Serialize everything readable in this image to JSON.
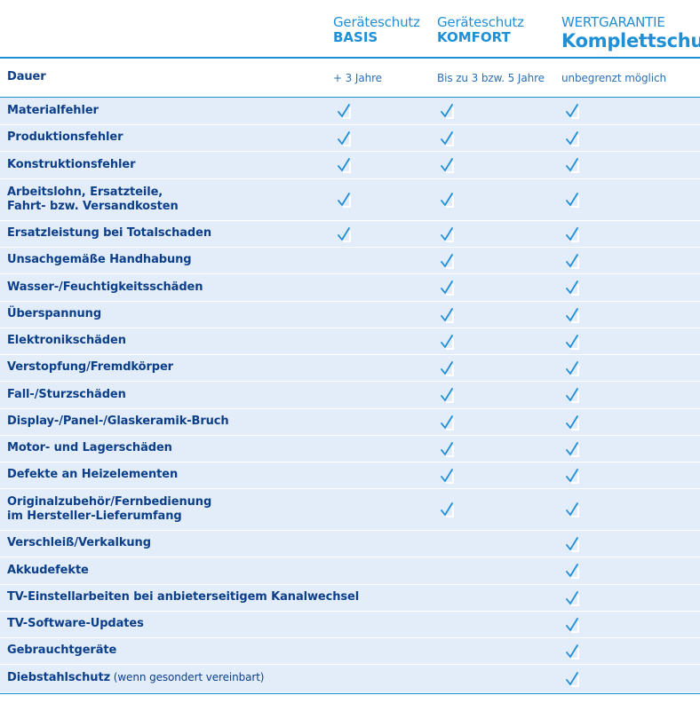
{
  "headers": [
    {
      "line1": "Geräteschutz",
      "line2": "BASIS"
    },
    {
      "line1": "Geräteschutz",
      "line2": "KOMFORT"
    },
    {
      "line1": "WERTGARANTIE",
      "line2": "Komplettschutz"
    }
  ],
  "duration": {
    "label": "Dauer",
    "values": [
      "+ 3 Jahre",
      "Bis zu 3 bzw. 5 Jahre",
      "unbegrenzt möglich"
    ]
  },
  "rows": [
    {
      "label": "Materialfehler",
      "basis": true,
      "komfort": true,
      "komplett": true
    },
    {
      "label": "Produktionsfehler",
      "basis": true,
      "komfort": true,
      "komplett": true
    },
    {
      "label": "Konstruktionsfehler",
      "basis": true,
      "komfort": true,
      "komplett": true
    },
    {
      "label": "Arbeitslohn, Ersatzteile,",
      "label2": "Fahrt- bzw. Versandkosten",
      "basis": true,
      "komfort": true,
      "komplett": true
    },
    {
      "label": "Ersatzleistung bei Totalschaden",
      "basis": true,
      "komfort": true,
      "komplett": true
    },
    {
      "label": "Unsachgemäße Handhabung",
      "basis": false,
      "komfort": true,
      "komplett": true
    },
    {
      "label": "Wasser-/Feuchtigkeitsschäden",
      "basis": false,
      "komfort": true,
      "komplett": true
    },
    {
      "label": "Überspannung",
      "basis": false,
      "komfort": true,
      "komplett": true
    },
    {
      "label": "Elektronikschäden",
      "basis": false,
      "komfort": true,
      "komplett": true
    },
    {
      "label": "Verstopfung/Fremdkörper",
      "basis": false,
      "komfort": true,
      "komplett": true
    },
    {
      "label": "Fall-/Sturzschäden",
      "basis": false,
      "komfort": true,
      "komplett": true
    },
    {
      "label": "Display-/Panel-/Glaskeramik-Bruch",
      "basis": false,
      "komfort": true,
      "komplett": true
    },
    {
      "label": "Motor- und Lagerschäden",
      "basis": false,
      "komfort": true,
      "komplett": true
    },
    {
      "label": "Defekte an Heizelementen",
      "basis": false,
      "komfort": true,
      "komplett": true
    },
    {
      "label": "Originalzubehör/Fernbedienung",
      "label2": "im Hersteller-Lieferumfang",
      "basis": false,
      "komfort": true,
      "komplett": true
    },
    {
      "label": "Verschleiß/Verkalkung",
      "basis": false,
      "komfort": false,
      "komplett": true
    },
    {
      "label": "Akkudefekte",
      "basis": false,
      "komfort": false,
      "komplett": true
    },
    {
      "label": "TV-Einstellarbeiten bei anbieterseitigem Kanalwechsel",
      "basis": false,
      "komfort": false,
      "komplett": true
    },
    {
      "label": "TV-Software-Updates",
      "basis": false,
      "komfort": false,
      "komplett": true
    },
    {
      "label": "Gebrauchtgeräte",
      "basis": false,
      "komfort": false,
      "komplett": true
    },
    {
      "label": "Diebstahlschutz",
      "note": "(wenn gesondert vereinbart)",
      "basis": false,
      "komfort": false,
      "komplett": true
    }
  ],
  "colors": {
    "accent": "#1f8fd6",
    "rowBg": "#e3edf9",
    "label": "#0c3f8a"
  }
}
